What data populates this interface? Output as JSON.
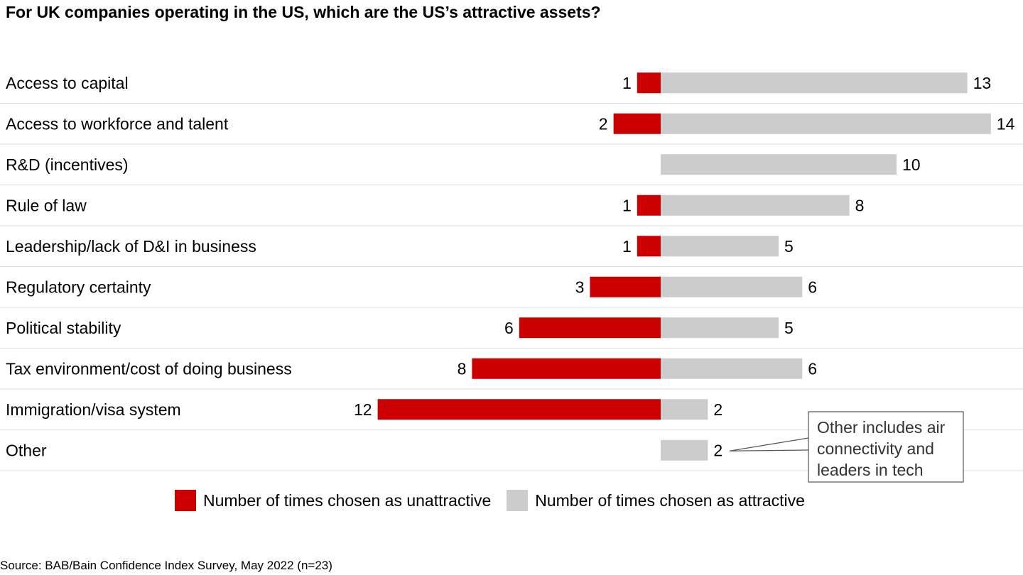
{
  "title": "For UK companies operating in the US, which are the US’s attractive assets?",
  "source": "Source: BAB/Bain Confidence Index Survey, May 2022 (n=23)",
  "colors": {
    "unattractive": "#cc0000",
    "attractive": "#cccccc",
    "divider": "#dddddd",
    "callout_border": "#555555"
  },
  "chart_data": {
    "type": "bar",
    "orientation": "horizontal",
    "stacked": "diverging",
    "categories": [
      "Access to capital",
      "Access to workforce and talent",
      "R&D (incentives)",
      "Rule of law",
      "Leadership/lack of D&I in business",
      "Regulatory certainty",
      "Political stability",
      "Tax environment/cost of doing business",
      "Immigration/visa system",
      "Other"
    ],
    "series": [
      {
        "name": "Number of times chosen as unattractive",
        "values": [
          1,
          2,
          null,
          1,
          1,
          3,
          6,
          8,
          12,
          null
        ]
      },
      {
        "name": "Number of times chosen as attractive",
        "values": [
          13,
          14,
          10,
          8,
          5,
          6,
          5,
          6,
          2,
          2
        ]
      }
    ],
    "legend_position": "bottom",
    "grid": false,
    "annotation": {
      "category": "Other",
      "lines": [
        "Other includes air",
        "connectivity and",
        "leaders in tech"
      ]
    }
  }
}
